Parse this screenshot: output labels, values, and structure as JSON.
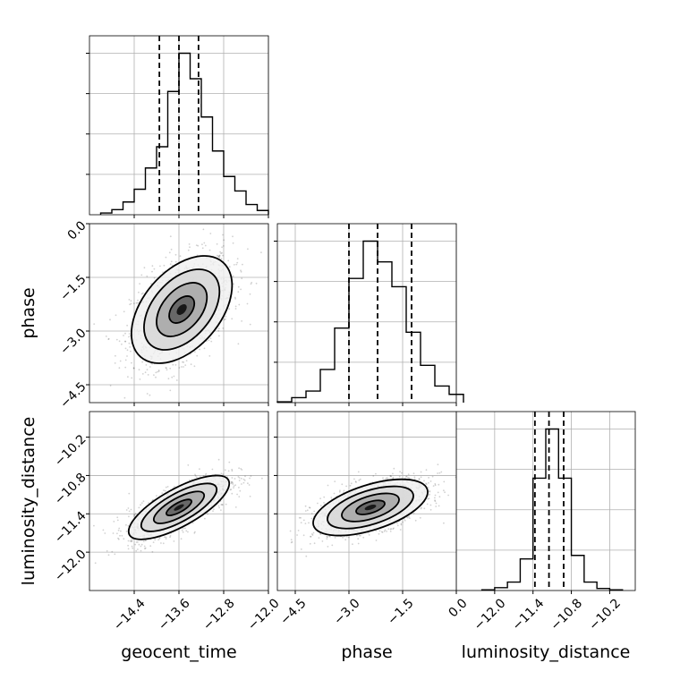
{
  "chart_data": {
    "type": "corner",
    "parameters": [
      "geocent_time",
      "phase",
      "luminosity_distance"
    ],
    "axis_labels": {
      "bottom": [
        "geocent_time",
        "phase",
        "luminosity_distance"
      ],
      "left": [
        "phase",
        "luminosity_distance"
      ]
    },
    "ticks": {
      "geocent_time": [
        "−14.4",
        "−13.6",
        "−12.8",
        "−12.0"
      ],
      "phase": [
        "−4.5",
        "−3.0",
        "−1.5",
        "0.0"
      ],
      "luminosity_distance": [
        "−12.0",
        "−11.4",
        "−10.8",
        "−10.2"
      ]
    },
    "ranges": {
      "geocent_time": [
        -15.2,
        -12.0
      ],
      "phase": [
        -5.0,
        0.0
      ],
      "luminosity_distance": [
        -12.6,
        -9.8
      ]
    },
    "grid": true,
    "quantiles": {
      "geocent_time": [
        -13.95,
        -13.6,
        -13.25
      ],
      "phase": [
        -3.0,
        -2.2,
        -1.25
      ],
      "luminosity_distance": [
        -11.37,
        -11.15,
        -10.92
      ]
    },
    "histograms": {
      "geocent_time": {
        "bins": [
          -15.0,
          -14.8,
          -14.6,
          -14.4,
          -14.2,
          -14.0,
          -13.8,
          -13.6,
          -13.4,
          -13.2,
          -13.0,
          -12.8,
          -12.6,
          -12.4,
          -12.2
        ],
        "counts": [
          2,
          6,
          15,
          30,
          55,
          80,
          145,
          190,
          160,
          115,
          75,
          45,
          28,
          12,
          5
        ]
      },
      "phase": {
        "bins": [
          -5.0,
          -4.6,
          -4.2,
          -3.8,
          -3.4,
          -3.0,
          -2.6,
          -2.2,
          -1.8,
          -1.4,
          -1.0,
          -0.6,
          -0.2
        ],
        "counts": [
          1,
          6,
          14,
          40,
          90,
          150,
          195,
          170,
          140,
          85,
          45,
          20,
          10
        ]
      },
      "luminosity_distance": {
        "bins": [
          -12.2,
          -12.0,
          -11.8,
          -11.6,
          -11.4,
          -11.2,
          -11.0,
          -10.8,
          -10.6,
          -10.4,
          -10.2
        ],
        "counts": [
          1,
          4,
          12,
          45,
          160,
          230,
          160,
          50,
          12,
          3,
          1
        ]
      }
    },
    "correlations": [
      {
        "x": "geocent_time",
        "y": "phase",
        "center": [
          -13.55,
          -2.4
        ],
        "sd": [
          0.45,
          0.75
        ],
        "rho": 0.45
      },
      {
        "x": "geocent_time",
        "y": "luminosity_distance",
        "center": [
          -13.6,
          -11.3
        ],
        "sd": [
          0.45,
          0.25
        ],
        "rho": 0.75
      },
      {
        "x": "phase",
        "y": "luminosity_distance",
        "center": [
          -2.4,
          -11.3
        ],
        "sd": [
          0.8,
          0.22
        ],
        "rho": 0.55
      }
    ],
    "contour_levels_sigma": [
      0.5,
      1.0,
      1.5,
      2.0
    ]
  }
}
